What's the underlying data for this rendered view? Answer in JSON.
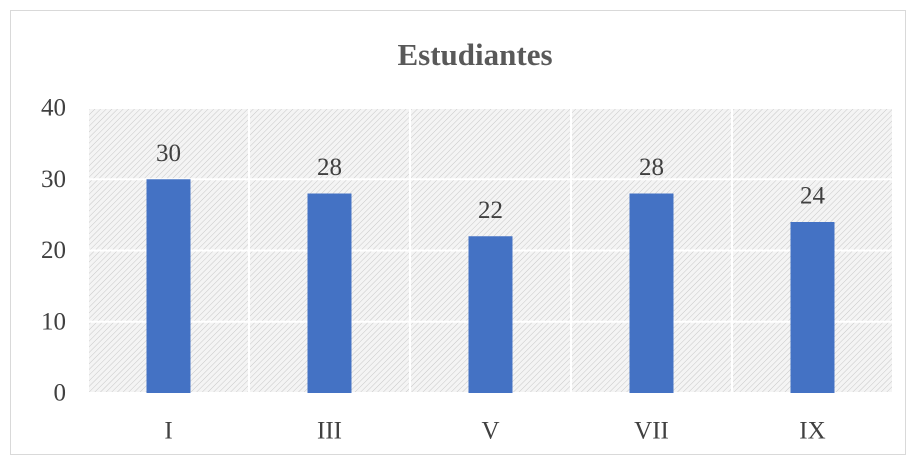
{
  "chart_data": {
    "type": "bar",
    "title": "Estudiantes",
    "categories": [
      "I",
      "III",
      "V",
      "VII",
      "IX"
    ],
    "values": [
      30,
      28,
      22,
      28,
      24
    ],
    "color": "#4472c4",
    "ylim": [
      0,
      40
    ],
    "yticks": [
      0,
      10,
      20,
      30,
      40
    ],
    "grid": true
  }
}
